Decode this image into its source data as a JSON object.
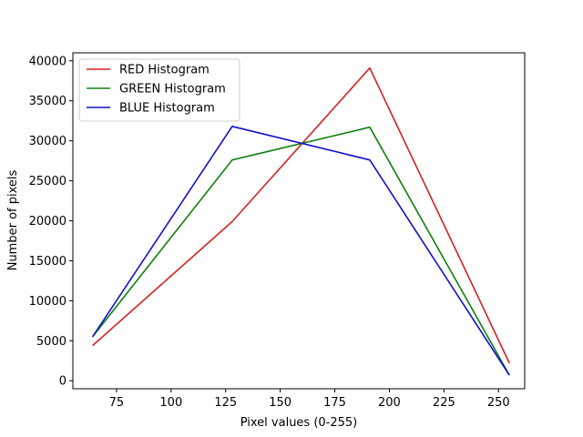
{
  "chart_data": {
    "type": "line",
    "title": "",
    "xlabel": "Pixel values (0-255)",
    "ylabel": "Number of pixels",
    "xlim": [
      55,
      262
    ],
    "ylim": [
      -1000,
      41000
    ],
    "xticks": [
      75,
      100,
      125,
      150,
      175,
      200,
      225,
      250
    ],
    "yticks": [
      0,
      5000,
      10000,
      15000,
      20000,
      25000,
      30000,
      35000,
      40000
    ],
    "grid": false,
    "legend_position": "upper left",
    "x": [
      64,
      128,
      191,
      255
    ],
    "series": [
      {
        "name": "RED Histogram",
        "color": "#d62020",
        "values": [
          4400,
          19900,
          39100,
          2200
        ]
      },
      {
        "name": "GREEN Histogram",
        "color": "#108010",
        "values": [
          5500,
          27600,
          31700,
          700
        ]
      },
      {
        "name": "BLUE Histogram",
        "color": "#1010cc",
        "values": [
          5500,
          31800,
          27600,
          700
        ]
      }
    ]
  }
}
